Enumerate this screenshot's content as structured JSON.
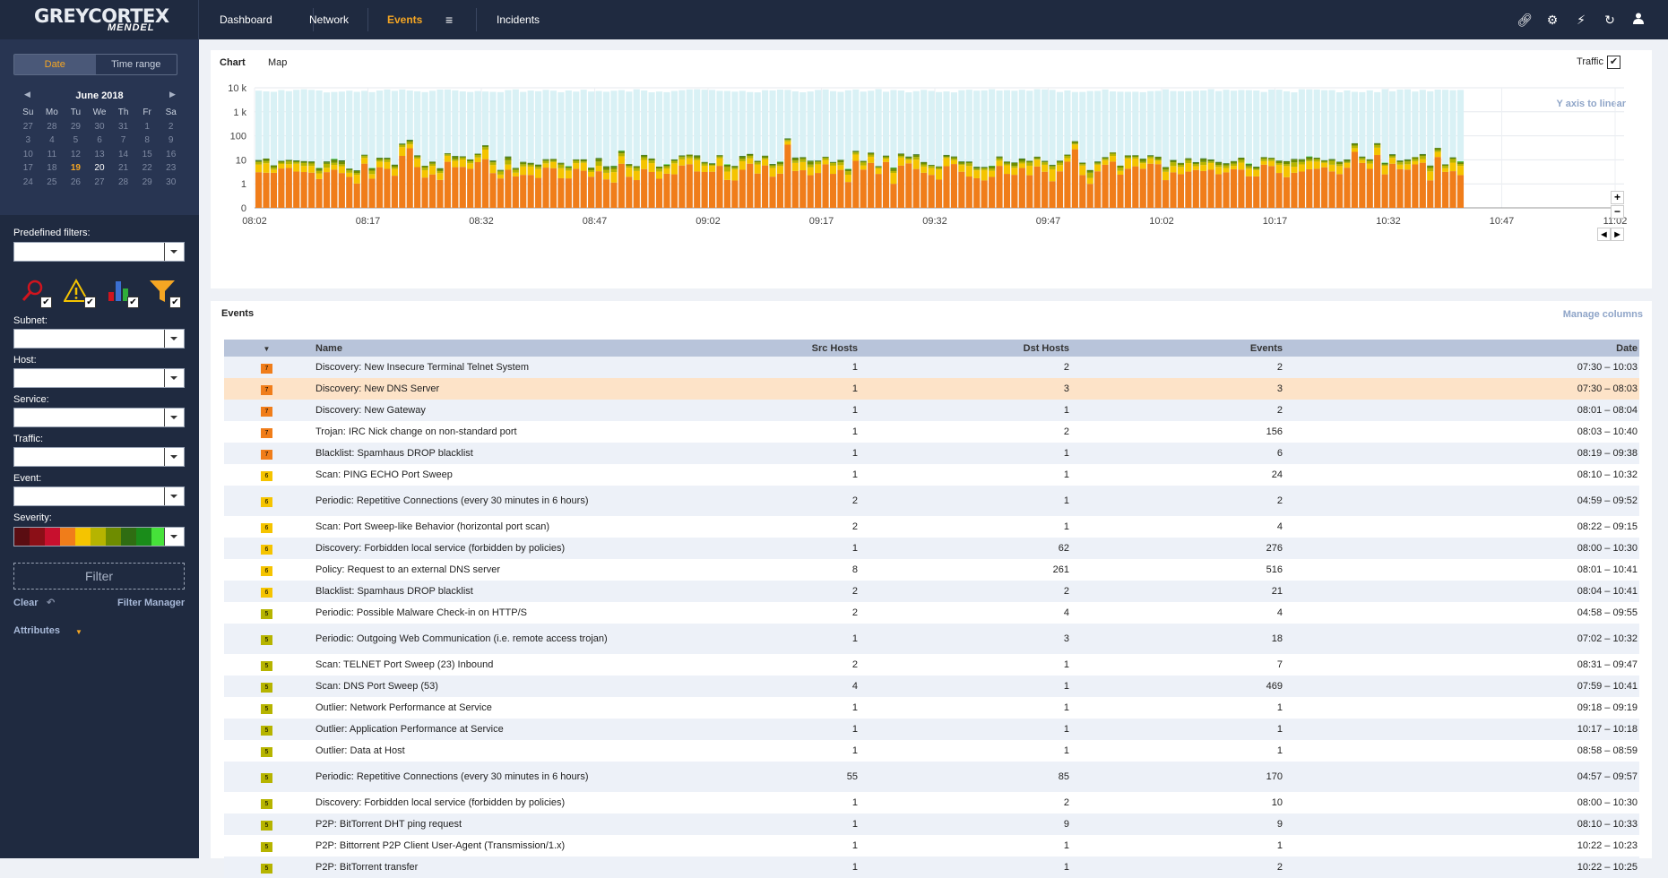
{
  "logo": {
    "line1": "GREYCORTEX",
    "line2": "MENDEL"
  },
  "nav": {
    "items": [
      "Dashboard",
      "Network",
      "Events",
      "Incidents"
    ],
    "active": "Events"
  },
  "sidebar": {
    "date_label": "Date",
    "range_label": "Time range",
    "calendar": {
      "title": "June 2018",
      "weekdays": [
        "Su",
        "Mo",
        "Tu",
        "We",
        "Th",
        "Fr",
        "Sa"
      ],
      "weeks": [
        [
          "27",
          "28",
          "29",
          "30",
          "31",
          "1",
          "2"
        ],
        [
          "3",
          "4",
          "5",
          "6",
          "7",
          "8",
          "9"
        ],
        [
          "10",
          "11",
          "12",
          "13",
          "14",
          "15",
          "16"
        ],
        [
          "17",
          "18",
          "19",
          "20",
          "21",
          "22",
          "23"
        ],
        [
          "24",
          "25",
          "26",
          "27",
          "28",
          "29",
          "30"
        ]
      ],
      "today": "19",
      "selected": "20"
    },
    "predefined_label": "Predefined filters:",
    "subnet_label": "Subnet:",
    "host_label": "Host:",
    "service_label": "Service:",
    "traffic_label": "Traffic:",
    "event_label": "Event:",
    "severity_label": "Severity:",
    "severity_colors": [
      "#5a0d12",
      "#8b0f17",
      "#c8102e",
      "#f07d1a",
      "#f5c400",
      "#b6b400",
      "#6e8c00",
      "#2f6d12",
      "#1a8c1a",
      "#46e23a"
    ],
    "filter_label": "Filter",
    "clear_label": "Clear",
    "filter_manager_label": "Filter Manager",
    "attributes_label": "Attributes"
  },
  "chart_panel": {
    "tabs": [
      "Chart",
      "Map"
    ],
    "active_tab": "Chart",
    "traffic_label": "Traffic",
    "y_axis_toggle": "Y axis to linear"
  },
  "chart_data": {
    "type": "bar",
    "ylabel_ticks": [
      "0",
      "1",
      "10",
      "100",
      "1 k",
      "10 k"
    ],
    "y_scale": "log",
    "x_ticks": [
      "08:02",
      "08:17",
      "08:32",
      "08:47",
      "09:02",
      "09:17",
      "09:32",
      "09:47",
      "10:02",
      "10:17",
      "10:32",
      "10:47",
      "11:02"
    ],
    "x_range": [
      "08:02",
      "11:02"
    ],
    "data_until": "10:42",
    "bars_per_tick": 15,
    "stack_colors": [
      "#f07d1a",
      "#f5c400",
      "#b6b400",
      "#6e8c00",
      "#2f6d12",
      "#46e23a"
    ],
    "traffic_color": "#d9f1f5",
    "traffic_level": 8000,
    "grid": true
  },
  "events_panel": {
    "tab": "Events",
    "manage_columns": "Manage columns",
    "columns": [
      "",
      "Name",
      "Src Hosts",
      "Dst Hosts",
      "Events",
      "Date"
    ],
    "rows": [
      {
        "sev": "7",
        "name": "Discovery: New Insecure Terminal Telnet System",
        "src": "1",
        "dst": "2",
        "events": "2",
        "date": "07:30 – 10:03"
      },
      {
        "sev": "7",
        "name": "Discovery: New DNS Server",
        "src": "1",
        "dst": "3",
        "events": "3",
        "date": "07:30 – 08:03"
      },
      {
        "sev": "7",
        "name": "Discovery: New Gateway",
        "src": "1",
        "dst": "1",
        "events": "2",
        "date": "08:01 – 08:04"
      },
      {
        "sev": "7",
        "name": "Trojan: IRC Nick change on non-standard port",
        "src": "1",
        "dst": "2",
        "events": "156",
        "date": "08:03 – 10:40"
      },
      {
        "sev": "7",
        "name": "Blacklist: Spamhaus DROP blacklist",
        "src": "1",
        "dst": "1",
        "events": "6",
        "date": "08:19 – 09:38"
      },
      {
        "sev": "6",
        "name": "Scan: PING ECHO Port Sweep",
        "src": "1",
        "dst": "1",
        "events": "24",
        "date": "08:10 – 10:32"
      },
      {
        "sev": "6",
        "name": "Periodic: Repetitive Connections (every 30 minutes in 6 hours)",
        "src": "2",
        "dst": "1",
        "events": "2",
        "date": "04:59 – 09:52"
      },
      {
        "sev": "6",
        "name": "Scan: Port Sweep-like Behavior (horizontal port scan)",
        "src": "2",
        "dst": "1",
        "events": "4",
        "date": "08:22 – 09:15"
      },
      {
        "sev": "6",
        "name": "Discovery: Forbidden local service (forbidden by policies)",
        "src": "1",
        "dst": "62",
        "events": "276",
        "date": "08:00 – 10:30"
      },
      {
        "sev": "6",
        "name": "Policy: Request to an external DNS server",
        "src": "8",
        "dst": "261",
        "events": "516",
        "date": "08:01 – 10:41"
      },
      {
        "sev": "6",
        "name": "Blacklist: Spamhaus DROP blacklist",
        "src": "2",
        "dst": "2",
        "events": "21",
        "date": "08:04 – 10:41"
      },
      {
        "sev": "5",
        "name": "Periodic: Possible Malware Check-in on HTTP/S",
        "src": "2",
        "dst": "4",
        "events": "4",
        "date": "04:58 – 09:55"
      },
      {
        "sev": "5",
        "name": "Periodic: Outgoing Web Communication (i.e. remote access trojan)",
        "src": "1",
        "dst": "3",
        "events": "18",
        "date": "07:02 – 10:32"
      },
      {
        "sev": "5",
        "name": "Scan: TELNET Port Sweep (23) Inbound",
        "src": "2",
        "dst": "1",
        "events": "7",
        "date": "08:31 – 09:47"
      },
      {
        "sev": "5",
        "name": "Scan: DNS Port Sweep (53)",
        "src": "4",
        "dst": "1",
        "events": "469",
        "date": "07:59 – 10:41"
      },
      {
        "sev": "5",
        "name": "Outlier: Network Performance at Service",
        "src": "1",
        "dst": "1",
        "events": "1",
        "date": "09:18 – 09:19"
      },
      {
        "sev": "5",
        "name": "Outlier: Application Performance at Service",
        "src": "1",
        "dst": "1",
        "events": "1",
        "date": "10:17 – 10:18"
      },
      {
        "sev": "5",
        "name": "Outlier: Data at Host",
        "src": "1",
        "dst": "1",
        "events": "1",
        "date": "08:58 – 08:59"
      },
      {
        "sev": "5",
        "name": "Periodic: Repetitive Connections (every 30 minutes in 6 hours)",
        "src": "55",
        "dst": "85",
        "events": "170",
        "date": "04:57 – 09:57"
      },
      {
        "sev": "5",
        "name": "Discovery: Forbidden local service (forbidden by policies)",
        "src": "1",
        "dst": "2",
        "events": "10",
        "date": "08:00 – 10:30"
      },
      {
        "sev": "5",
        "name": "P2P: BitTorrent DHT ping request",
        "src": "1",
        "dst": "9",
        "events": "9",
        "date": "08:10 – 10:33"
      },
      {
        "sev": "5",
        "name": "P2P: Bittorrent P2P Client User-Agent (Transmission/1.x)",
        "src": "1",
        "dst": "1",
        "events": "1",
        "date": "10:22 – 10:23"
      },
      {
        "sev": "5",
        "name": "P2P: BitTorrent transfer",
        "src": "1",
        "dst": "1",
        "events": "2",
        "date": "10:22 – 10:25"
      }
    ],
    "severity_colors": {
      "7": "#f07d1a",
      "6": "#f5c400",
      "5": "#b6b400"
    }
  }
}
